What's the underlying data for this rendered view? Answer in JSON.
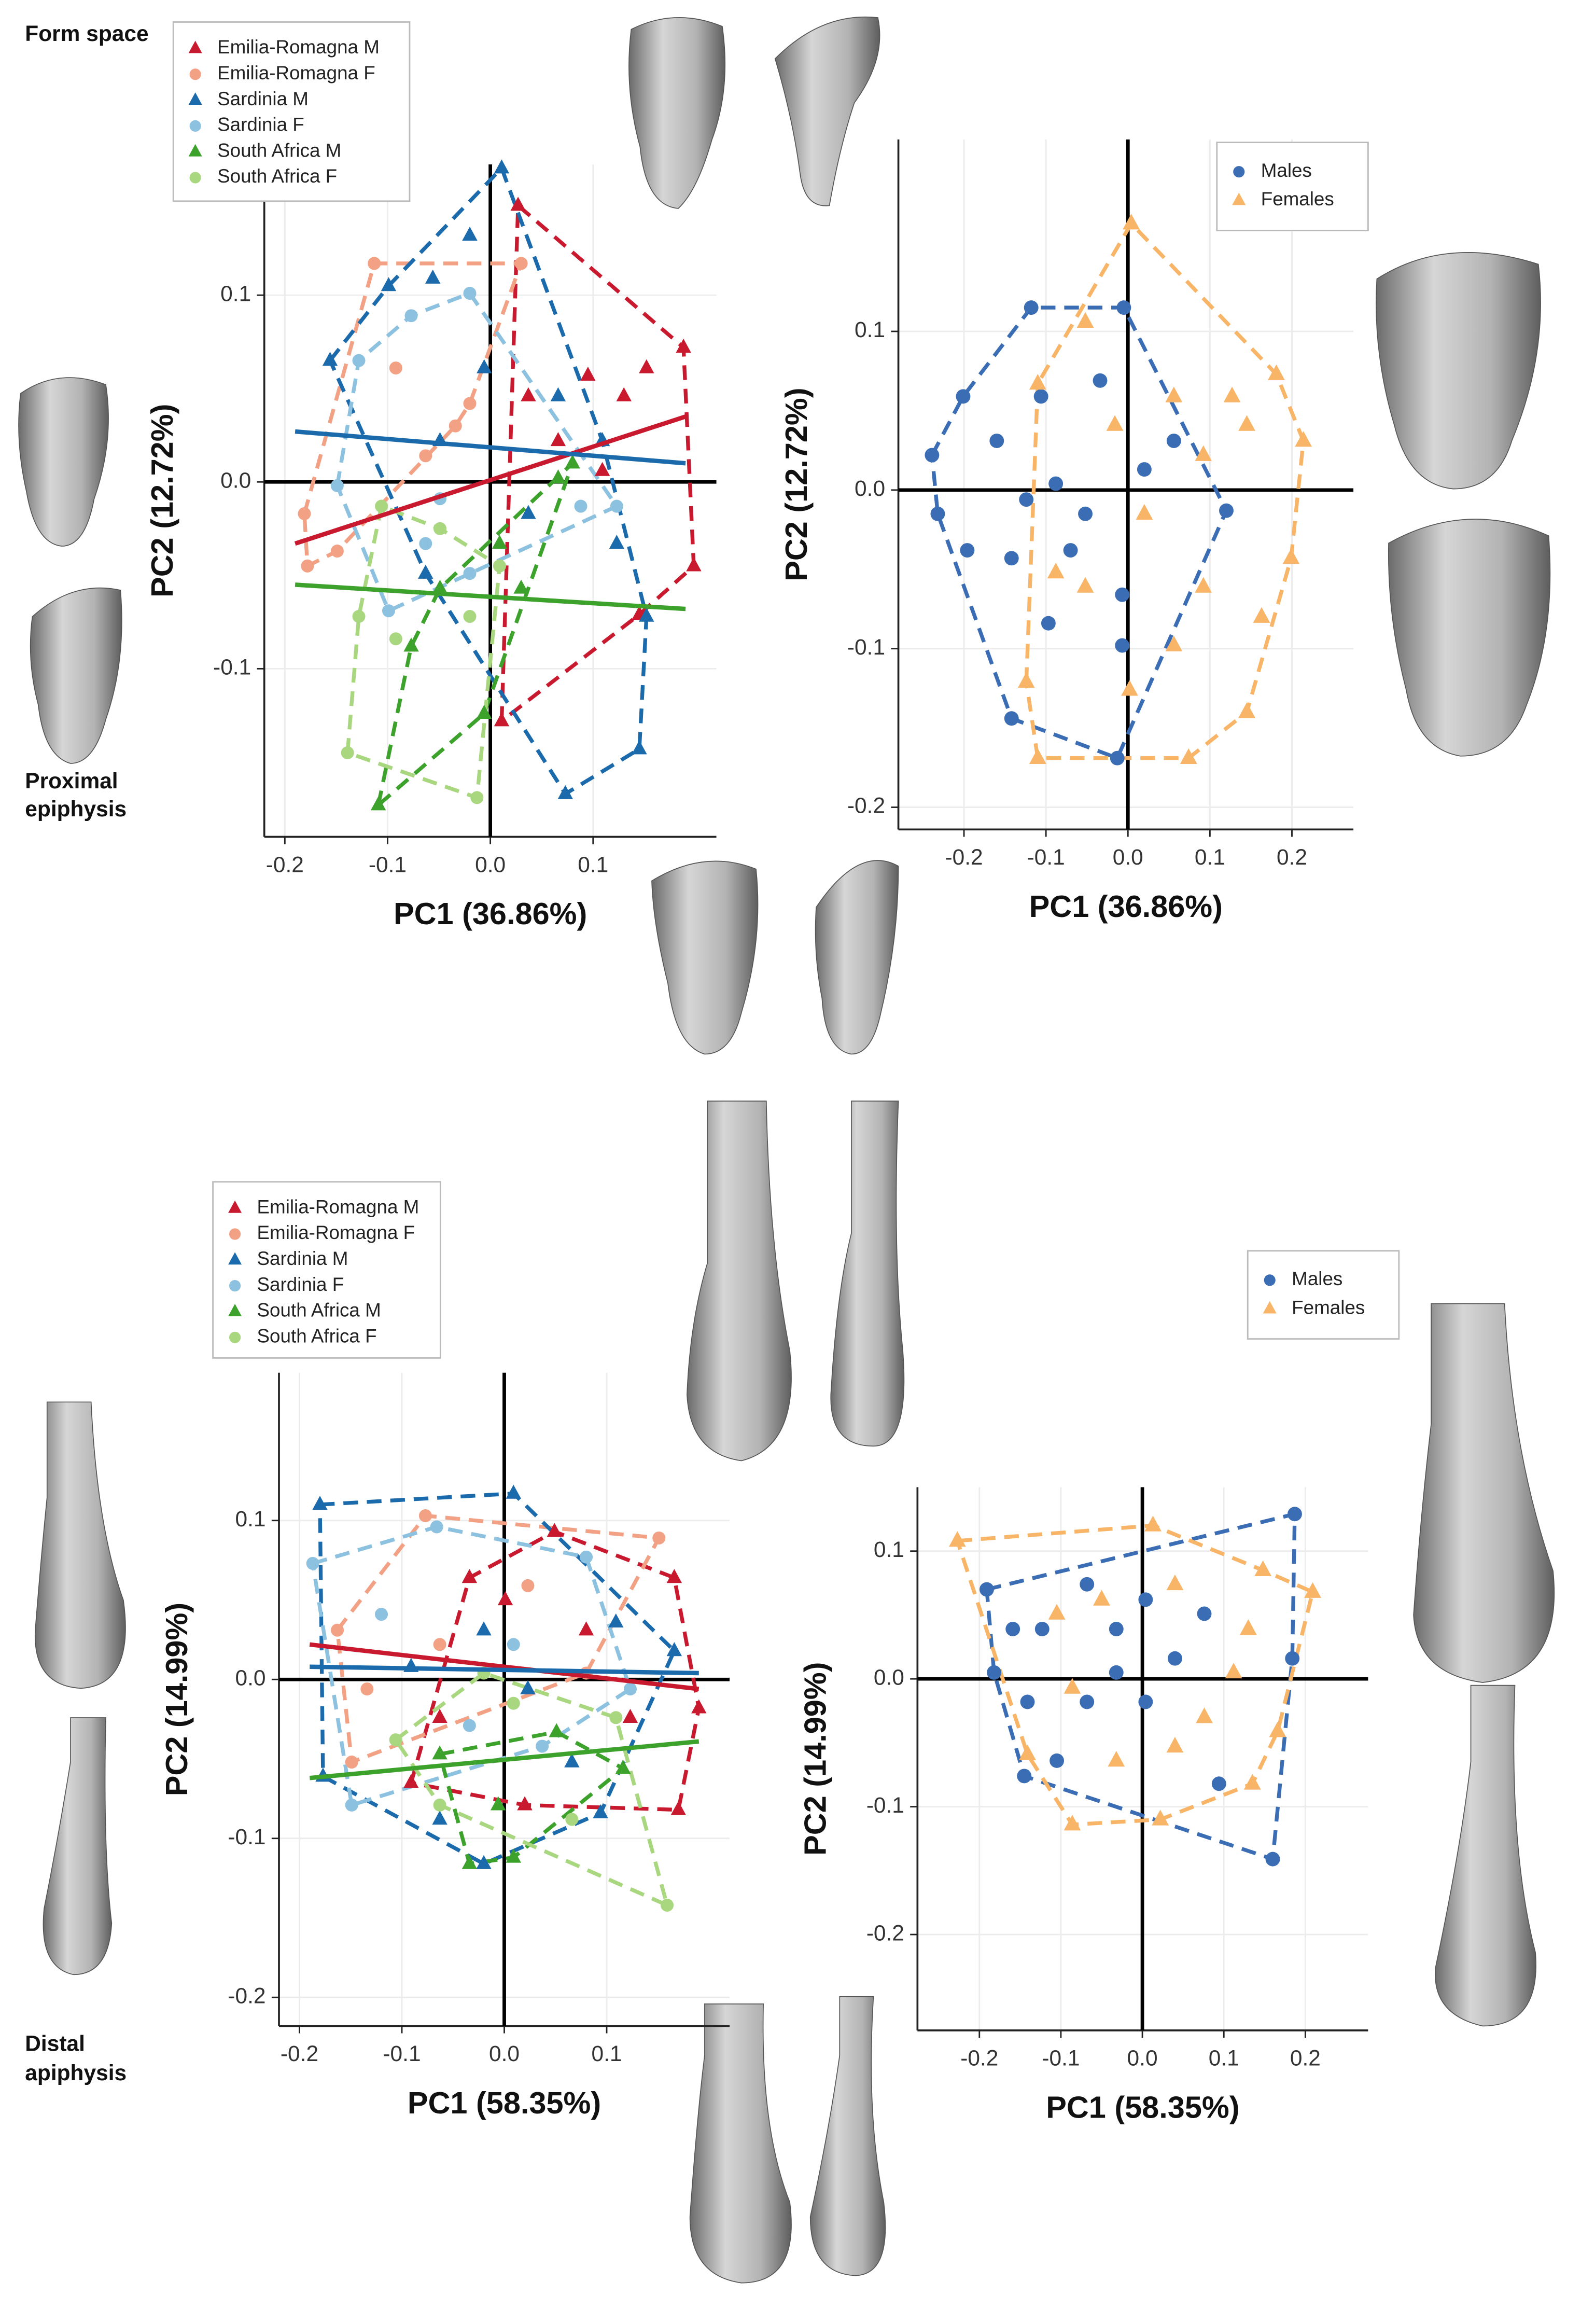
{
  "labels": {
    "form_space": "Form space",
    "proximal": [
      "Proximal",
      "epiphysis"
    ],
    "distal": [
      "Distal",
      "apiphysis"
    ]
  },
  "chart_data": [
    {
      "type": "scatter",
      "x_label": "PC1 (36.86%)",
      "y_label": "PC2 (12.72%)",
      "xlim": [
        -0.22,
        0.22
      ],
      "ylim": [
        -0.19,
        0.17
      ],
      "xticks": [
        -0.2,
        -0.1,
        {
          "value": 0,
          "label": "0.0"
        },
        0.1
      ],
      "yticks": [
        -0.1,
        {
          "value": 0,
          "label": "0.0"
        },
        0.1
      ],
      "grid": true,
      "zero_lines": true,
      "series": [
        {
          "name": "Emilia-Romagna M",
          "color": "#c8192e",
          "marker": "triangle",
          "x": [
            0.027,
            0.188,
            0.198,
            0.145,
            0.011,
            0.095,
            0.13,
            0.066,
            0.109,
            0.037,
            0.152
          ],
          "y": [
            0.148,
            0.072,
            -0.045,
            -0.071,
            -0.128,
            0.057,
            0.046,
            0.022,
            0.006,
            0.046,
            0.061
          ],
          "fit_x": [
            -0.19,
            0.19
          ],
          "fit_y": [
            -0.033,
            0.035
          ]
        },
        {
          "name": "Emilia-Romagna F",
          "color": "#f2a184",
          "marker": "circle",
          "x": [
            -0.113,
            0.03,
            -0.178,
            -0.181,
            -0.149,
            -0.092,
            -0.034,
            -0.063,
            -0.02
          ],
          "y": [
            0.117,
            0.117,
            -0.045,
            -0.017,
            -0.037,
            0.061,
            0.03,
            0.014,
            0.042
          ]
        },
        {
          "name": "Sardinia M",
          "color": "#1b6aab",
          "marker": "triangle",
          "x": [
            0.011,
            0.073,
            0.145,
            0.152,
            -0.099,
            -0.156,
            -0.056,
            -0.02,
            -0.006,
            0.066,
            -0.049,
            0.037,
            0.109,
            -0.063,
            0.123
          ],
          "y": [
            0.168,
            -0.167,
            -0.143,
            -0.072,
            0.105,
            0.065,
            0.109,
            0.132,
            0.061,
            0.046,
            0.022,
            -0.017,
            0.022,
            -0.049,
            -0.033
          ],
          "fit_x": [
            -0.19,
            0.19
          ],
          "fit_y": [
            0.027,
            0.01
          ]
        },
        {
          "name": "Sardinia F",
          "color": "#8cc1e0",
          "marker": "circle",
          "x": [
            -0.02,
            -0.128,
            -0.149,
            -0.077,
            -0.049,
            -0.02,
            0.088,
            0.123,
            -0.099,
            -0.063
          ],
          "y": [
            0.101,
            0.065,
            -0.002,
            0.089,
            -0.009,
            -0.049,
            -0.013,
            -0.013,
            -0.069,
            -0.033
          ]
        },
        {
          "name": "South Africa M",
          "color": "#3ca22c",
          "marker": "triangle",
          "x": [
            -0.109,
            -0.006,
            0.066,
            0.08,
            -0.049,
            0.009,
            -0.077,
            0.03
          ],
          "y": [
            -0.173,
            -0.124,
            0.002,
            0.01,
            -0.057,
            -0.033,
            -0.088,
            -0.057
          ],
          "fit_x": [
            -0.19,
            0.19
          ],
          "fit_y": [
            -0.055,
            -0.068
          ]
        },
        {
          "name": "South Africa F",
          "color": "#a9d77f",
          "marker": "circle",
          "x": [
            -0.139,
            -0.013,
            -0.02,
            -0.106,
            -0.128,
            -0.092,
            -0.049,
            0.009
          ],
          "y": [
            -0.145,
            -0.169,
            -0.072,
            -0.013,
            -0.072,
            -0.084,
            -0.025,
            -0.045
          ]
        }
      ]
    },
    {
      "type": "scatter",
      "x_label": "PC1 (36.86%)",
      "y_label": "PC2 (12.72%)",
      "xlim": [
        -0.28,
        0.275
      ],
      "ylim": [
        -0.214,
        0.221
      ],
      "xticks": [
        -0.2,
        -0.1,
        {
          "value": 0,
          "label": "0.0"
        },
        0.1,
        0.2
      ],
      "yticks": [
        -0.2,
        -0.1,
        {
          "value": 0,
          "label": "0.0"
        },
        0.1
      ],
      "grid": true,
      "zero_lines": true,
      "series": [
        {
          "name": "Males",
          "color": "#3b6db5",
          "marker": "circle",
          "x": [
            -0.239,
            -0.201,
            -0.118,
            -0.005,
            -0.013,
            -0.142,
            -0.232,
            0.12,
            0.056,
            -0.16,
            -0.088,
            -0.052,
            -0.142,
            -0.097,
            -0.007,
            -0.034,
            -0.106,
            -0.196,
            -0.07,
            0.02,
            -0.124,
            -0.007
          ],
          "y": [
            0.022,
            0.059,
            0.115,
            0.115,
            -0.169,
            -0.144,
            -0.015,
            -0.013,
            0.031,
            0.031,
            0.004,
            -0.015,
            -0.043,
            -0.084,
            -0.066,
            0.069,
            0.059,
            -0.038,
            -0.038,
            0.013,
            -0.006,
            -0.098
          ]
        },
        {
          "name": "Females",
          "color": "#f8b567",
          "marker": "triangle",
          "x": [
            0.004,
            0.214,
            0.199,
            0.145,
            0.074,
            -0.11,
            -0.124,
            -0.11,
            -0.052,
            0.056,
            0.145,
            0.092,
            0.02,
            -0.052,
            0.002,
            0.092,
            0.163,
            0.127,
            -0.016,
            0.056,
            -0.088,
            0.181
          ],
          "y": [
            0.168,
            0.031,
            -0.043,
            -0.14,
            -0.169,
            -0.169,
            -0.121,
            0.067,
            0.106,
            0.059,
            0.041,
            0.022,
            -0.015,
            -0.061,
            -0.126,
            -0.061,
            -0.08,
            0.059,
            0.041,
            -0.098,
            -0.052,
            0.073
          ]
        }
      ]
    },
    {
      "type": "scatter",
      "x_label": "PC1 (58.35%)",
      "y_label": "PC2 (14.99%)",
      "xlim": [
        -0.22,
        0.22
      ],
      "ylim": [
        -0.218,
        0.193
      ],
      "xticks": [
        -0.2,
        -0.1,
        {
          "value": 0,
          "label": "0.0"
        },
        0.1
      ],
      "yticks": [
        -0.2,
        -0.1,
        {
          "value": 0,
          "label": "0.0"
        },
        0.1
      ],
      "grid": true,
      "zero_lines": true,
      "series": [
        {
          "name": "Emilia-Romagna M",
          "color": "#c8192e",
          "marker": "triangle",
          "x": [
            0.049,
            0.166,
            0.19,
            0.17,
            0.02,
            -0.034,
            0.001,
            0.08,
            -0.063,
            0.123,
            -0.091
          ],
          "y": [
            0.093,
            0.064,
            -0.018,
            -0.082,
            -0.079,
            0.064,
            0.05,
            0.031,
            -0.024,
            -0.024,
            -0.065
          ],
          "fit_x": [
            -0.19,
            0.19
          ],
          "fit_y": [
            0.022,
            -0.006
          ]
        },
        {
          "name": "Emilia-Romagna F",
          "color": "#f2a184",
          "marker": "circle",
          "x": [
            -0.077,
            0.151,
            -0.134,
            -0.063,
            0.023,
            0.08,
            -0.163,
            -0.149
          ],
          "y": [
            0.103,
            0.089,
            -0.006,
            0.022,
            0.059,
            0.004,
            0.031,
            -0.052
          ]
        },
        {
          "name": "Sardinia M",
          "color": "#1b6aab",
          "marker": "triangle",
          "x": [
            -0.18,
            0.009,
            0.094,
            -0.02,
            -0.177,
            -0.091,
            0.023,
            0.109,
            0.166,
            -0.063,
            0.066,
            -0.02
          ],
          "y": [
            0.11,
            0.117,
            -0.084,
            -0.116,
            -0.061,
            0.008,
            -0.006,
            0.036,
            0.018,
            -0.088,
            -0.052,
            0.031
          ],
          "fit_x": [
            -0.19,
            0.19
          ],
          "fit_y": [
            0.008,
            0.004
          ]
        },
        {
          "name": "Sardinia F",
          "color": "#8cc1e0",
          "marker": "circle",
          "x": [
            -0.187,
            -0.066,
            -0.149,
            0.123,
            0.08,
            -0.034,
            -0.12,
            0.037,
            0.009
          ],
          "y": [
            0.073,
            0.096,
            -0.079,
            -0.006,
            0.077,
            -0.029,
            0.041,
            -0.042,
            0.022
          ]
        },
        {
          "name": "South Africa M",
          "color": "#3ca22c",
          "marker": "triangle",
          "x": [
            -0.034,
            0.009,
            0.116,
            -0.063,
            0.051,
            -0.006
          ],
          "y": [
            -0.116,
            -0.112,
            -0.056,
            -0.047,
            -0.033,
            -0.079
          ],
          "fit_x": [
            -0.19,
            0.19
          ],
          "fit_y": [
            -0.062,
            -0.039
          ]
        },
        {
          "name": "South Africa F",
          "color": "#a9d77f",
          "marker": "circle",
          "x": [
            0.159,
            -0.063,
            0.009,
            0.109,
            -0.106,
            0.066,
            -0.02
          ],
          "y": [
            -0.142,
            -0.079,
            -0.015,
            -0.024,
            -0.038,
            -0.088,
            0.004
          ]
        }
      ]
    },
    {
      "type": "scatter",
      "x_label": "PC1 (58.35%)",
      "y_label": "PC2 (14.99%)",
      "xlim": [
        -0.276,
        0.277
      ],
      "ylim": [
        -0.275,
        0.15
      ],
      "xticks": [
        -0.2,
        -0.1,
        {
          "value": 0,
          "label": "0.0"
        },
        0.1,
        0.2
      ],
      "yticks": [
        -0.2,
        -0.1,
        {
          "value": 0,
          "label": "0.0"
        },
        0.1
      ],
      "grid": true,
      "zero_lines": true,
      "series": [
        {
          "name": "Males",
          "color": "#3b6db5",
          "marker": "circle",
          "x": [
            -0.191,
            0.187,
            0.16,
            -0.145,
            -0.182,
            -0.123,
            -0.068,
            -0.032,
            0.04,
            0.004,
            -0.068,
            -0.141,
            -0.105,
            0.094,
            0.004,
            0.076,
            -0.032,
            -0.159,
            0.184
          ],
          "y": [
            0.07,
            0.129,
            -0.141,
            -0.076,
            0.005,
            0.039,
            0.074,
            0.039,
            0.016,
            -0.018,
            -0.018,
            -0.018,
            -0.064,
            -0.082,
            0.062,
            0.051,
            0.005,
            0.039,
            0.016
          ]
        },
        {
          "name": "Females",
          "color": "#f8b567",
          "marker": "triangle",
          "x": [
            -0.227,
            0.013,
            0.209,
            0.135,
            0.022,
            -0.086,
            -0.141,
            -0.05,
            0.04,
            0.148,
            0.112,
            0.076,
            -0.032,
            -0.086,
            0.166,
            0.04,
            0.13,
            -0.105
          ],
          "y": [
            0.108,
            0.12,
            0.068,
            -0.082,
            -0.11,
            -0.114,
            -0.059,
            0.062,
            0.074,
            0.085,
            0.005,
            -0.03,
            -0.064,
            -0.007,
            -0.041,
            -0.053,
            0.039,
            0.051
          ]
        }
      ]
    }
  ]
}
